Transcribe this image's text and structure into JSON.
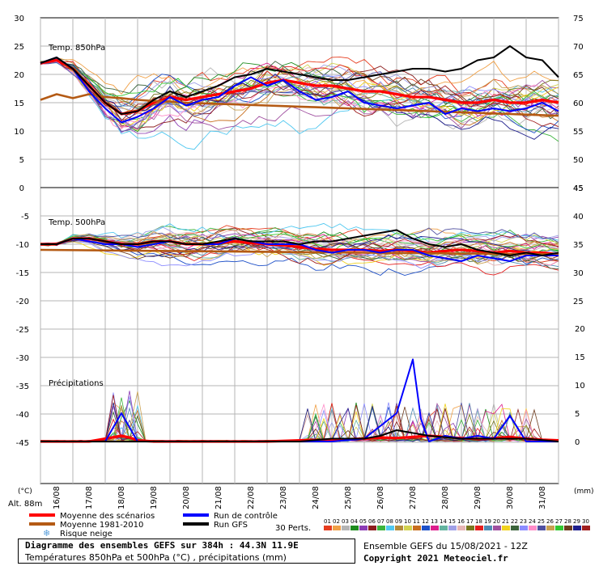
{
  "header": {
    "title": "Diagramme des ensembles GEFS sur 384h : 44.3N 11.9E",
    "subtitle": "Températures 850hPa et 500hPa (°C) , précipitations (mm)",
    "run_info": "Ensemble GEFS du 15/08/2021 - 12Z",
    "copyright": "Copyright 2021 Meteociel.fr"
  },
  "labels": {
    "panel_t850": "Temp. 850hPa",
    "panel_t500": "Temp. 500hPa",
    "panel_precip": "Précipitations",
    "unit_left": "(°C)",
    "unit_right": "(mm)",
    "altitude": "Alt. 88m",
    "perts": "30 Perts."
  },
  "legend": [
    {
      "label": "Moyenne des scénarios",
      "color": "#ff0000"
    },
    {
      "label": "Moyenne 1981-2010",
      "color": "#b45a14"
    },
    {
      "label": "Run de contrôle",
      "color": "#0000ff"
    },
    {
      "label": "Run GFS",
      "color": "#000000"
    },
    {
      "label": "Risque neige",
      "color": "#5aa0dc",
      "icon": "snowflake-icon"
    }
  ],
  "members": {
    "labels": [
      "01",
      "02",
      "03",
      "04",
      "05",
      "06",
      "07",
      "08",
      "09",
      "10",
      "11",
      "12",
      "13",
      "14",
      "15",
      "16",
      "17",
      "18",
      "19",
      "20",
      "21",
      "22",
      "23",
      "24",
      "25",
      "26",
      "27",
      "28",
      "29",
      "30"
    ],
    "colors": [
      "#e63c1e",
      "#f0a046",
      "#b4b4b4",
      "#1e8c1e",
      "#8c3cb4",
      "#8c1e1e",
      "#3cb43c",
      "#50c8f0",
      "#b48c3c",
      "#d2d250",
      "#c86e1e",
      "#1e50c8",
      "#dc1e8c",
      "#64b4a0",
      "#a0a0e6",
      "#e6b4b4",
      "#78781e",
      "#e61e1e",
      "#508cb4",
      "#a050a0",
      "#f0d21e",
      "#3c643c",
      "#8c8cff",
      "#ff8cc8",
      "#5050a0",
      "#c8a050",
      "#32c832",
      "#6e3c1e",
      "#1e1e8c",
      "#a01e1e"
    ]
  },
  "chart_data": [
    {
      "type": "line",
      "title": "Temp. 850hPa",
      "ylabel": "(°C)",
      "ylim": [
        0,
        30
      ],
      "y_ticks": [
        0,
        5,
        10,
        15,
        20,
        25,
        30
      ],
      "y_ticks_right": [
        45,
        50,
        55,
        60,
        65,
        70,
        75
      ],
      "x_ticks": [
        "16/08",
        "17/08",
        "18/08",
        "19/08",
        "20/08",
        "21/08",
        "22/08",
        "23/08",
        "24/08",
        "25/08",
        "26/08",
        "27/08",
        "28/08",
        "29/08",
        "30/08",
        "31/08"
      ],
      "x_days": [
        0.5,
        1.5,
        2.5,
        3.5,
        4.5,
        5.5,
        6.5,
        7.5,
        8.5,
        9.5,
        10.5,
        11.5,
        12.5,
        13.5,
        14.5,
        15.5
      ],
      "series": [
        {
          "name": "Moyenne des scénarios",
          "x": [
            0,
            0.5,
            1,
            1.5,
            2,
            2.5,
            3,
            3.5,
            4,
            4.5,
            5,
            5.5,
            6,
            6.5,
            7,
            7.5,
            8,
            8.5,
            9,
            9.5,
            10,
            10.5,
            11,
            11.5,
            12,
            12.5,
            13,
            13.5,
            14,
            14.5,
            15,
            15.5,
            16
          ],
          "y": [
            22,
            22.5,
            21,
            18,
            15,
            13,
            13.5,
            15,
            16,
            15.5,
            16,
            16.5,
            17,
            17.5,
            18.5,
            19,
            18.5,
            18,
            18,
            17.5,
            17,
            17,
            16.5,
            16,
            16,
            15.5,
            15,
            15,
            15.5,
            15,
            15,
            15.5,
            15
          ]
        },
        {
          "name": "Moyenne 1981-2010",
          "x": [
            0,
            0.5,
            1,
            1.5,
            2,
            2.5,
            3,
            3.5,
            4,
            4.5,
            5,
            5.5,
            6,
            6.5,
            7,
            7.5,
            8,
            8.5,
            9,
            9.5,
            10,
            10.5,
            11,
            11.5,
            12,
            12.5,
            13,
            13.5,
            14,
            14.5,
            15,
            15.5,
            16
          ],
          "y": [
            15.5,
            16.5,
            15.8,
            16.5,
            16,
            15.8,
            15.5,
            15.3,
            15.2,
            15,
            14.9,
            14.8,
            14.7,
            14.6,
            14.5,
            14.4,
            14.3,
            14.2,
            14.1,
            14,
            13.9,
            13.8,
            13.7,
            13.6,
            13.5,
            13.4,
            13.3,
            13.2,
            13.1,
            13,
            12.9,
            12.8,
            12.7
          ]
        },
        {
          "name": "Run de contrôle",
          "x": [
            0,
            0.5,
            1,
            1.5,
            2,
            2.5,
            3,
            3.5,
            4,
            4.5,
            5,
            5.5,
            6,
            6.5,
            7,
            7.5,
            8,
            8.5,
            9,
            9.5,
            10,
            10.5,
            11,
            11.5,
            12,
            12.5,
            13,
            13.5,
            14,
            14.5,
            15,
            15.5,
            16
          ],
          "y": [
            22,
            23,
            21,
            17,
            14,
            11.5,
            12.5,
            14,
            16,
            14.5,
            15.5,
            16,
            18,
            19.5,
            18,
            19,
            17,
            15.5,
            16,
            17,
            15,
            14.5,
            14,
            14.5,
            15,
            13,
            14,
            13.5,
            14,
            13.5,
            14,
            15,
            13.5
          ]
        },
        {
          "name": "Run GFS",
          "x": [
            0,
            0.5,
            1,
            1.5,
            2,
            2.5,
            3,
            3.5,
            4,
            4.5,
            5,
            5.5,
            6,
            6.5,
            7,
            7.5,
            8,
            8.5,
            9,
            9.5,
            10,
            10.5,
            11,
            11.5,
            12,
            12.5,
            13,
            13.5,
            14,
            14.5,
            15,
            15.5,
            16
          ],
          "y": [
            22,
            23,
            21,
            18,
            15,
            13,
            13.5,
            15.5,
            17,
            16,
            17,
            18,
            19.5,
            20,
            21,
            20.5,
            20,
            19.5,
            19,
            19,
            19.5,
            20,
            20.5,
            21,
            21,
            20.5,
            21,
            22.5,
            23,
            25,
            23,
            22.5,
            19.5
          ]
        }
      ]
    },
    {
      "type": "line",
      "title": "Temp. 500hPa",
      "ylabel": "(°C)",
      "ylim": [
        -22.5,
        0
      ],
      "y_ticks": [
        0,
        -5,
        -10,
        -15,
        -20
      ],
      "y_ticks_right": [
        45,
        40,
        35,
        30,
        25
      ],
      "x_ticks": [
        "16/08",
        "17/08",
        "18/08",
        "19/08",
        "20/08",
        "21/08",
        "22/08",
        "23/08",
        "24/08",
        "25/08",
        "26/08",
        "27/08",
        "28/08",
        "29/08",
        "30/08",
        "31/08"
      ],
      "x_days": [
        0.5,
        1.5,
        2.5,
        3.5,
        4.5,
        5.5,
        6.5,
        7.5,
        8.5,
        9.5,
        10.5,
        11.5,
        12.5,
        13.5,
        14.5,
        15.5
      ],
      "series": [
        {
          "name": "Moyenne des scénarios",
          "x": [
            0,
            0.5,
            1,
            1.5,
            2,
            2.5,
            3,
            3.5,
            4,
            4.5,
            5,
            5.5,
            6,
            6.5,
            7,
            7.5,
            8,
            8.5,
            9,
            9.5,
            10,
            10.5,
            11,
            11.5,
            12,
            12.5,
            13,
            13.5,
            14,
            14.5,
            15,
            15.5,
            16
          ],
          "y": [
            -10,
            -10,
            -9,
            -9,
            -9.5,
            -10,
            -10,
            -9.5,
            -9.5,
            -10,
            -10,
            -9.8,
            -9.5,
            -9.8,
            -10,
            -10.2,
            -10.5,
            -10.8,
            -11,
            -11,
            -11,
            -11.2,
            -11,
            -11.2,
            -11.5,
            -11.2,
            -11,
            -11.2,
            -11.5,
            -11.2,
            -11.5,
            -11.5,
            -11.8
          ]
        },
        {
          "name": "Moyenne 1981-2010",
          "x": [
            0,
            2,
            4,
            6,
            8,
            10,
            12,
            14,
            16
          ],
          "y": [
            -11,
            -11.1,
            -11.2,
            -11.3,
            -11.4,
            -11.5,
            -11.6,
            -11.7,
            -11.8
          ]
        },
        {
          "name": "Run de contrôle",
          "x": [
            0,
            0.5,
            1,
            1.5,
            2,
            2.5,
            3,
            3.5,
            4,
            4.5,
            5,
            5.5,
            6,
            6.5,
            7,
            7.5,
            8,
            8.5,
            9,
            9.5,
            10,
            10.5,
            11,
            11.5,
            12,
            12.5,
            13,
            13.5,
            14,
            14.5,
            15,
            15.5,
            16
          ],
          "y": [
            -10,
            -10,
            -9,
            -9.5,
            -10,
            -10,
            -10.5,
            -10,
            -9.5,
            -10,
            -10,
            -10,
            -9,
            -9.5,
            -10,
            -10,
            -10,
            -11,
            -11.5,
            -11,
            -11,
            -11.5,
            -11,
            -11,
            -12,
            -12.5,
            -13,
            -12,
            -12.5,
            -13,
            -12,
            -12,
            -12
          ]
        },
        {
          "name": "Run GFS",
          "x": [
            0,
            0.5,
            1,
            1.5,
            2,
            2.5,
            3,
            3.5,
            4,
            4.5,
            5,
            5.5,
            6,
            6.5,
            7,
            7.5,
            8,
            8.5,
            9,
            9.5,
            10,
            10.5,
            11,
            11.5,
            12,
            12.5,
            13,
            13.5,
            14,
            14.5,
            15,
            15.5,
            16
          ],
          "y": [
            -10,
            -10,
            -9,
            -9,
            -9.5,
            -10,
            -10,
            -9.5,
            -9.5,
            -10,
            -10,
            -9.5,
            -9,
            -9.5,
            -9.5,
            -9.5,
            -10,
            -9.5,
            -9.5,
            -9,
            -8.5,
            -8,
            -7.5,
            -9,
            -10,
            -10.5,
            -10,
            -11,
            -11.5,
            -12,
            -11.5,
            -12,
            -11.5
          ]
        }
      ]
    },
    {
      "type": "line",
      "title": "Précipitations",
      "ylabel": "(mm)",
      "ylim": [
        0,
        24
      ],
      "y_ticks_right": [
        0,
        5,
        10,
        15,
        20
      ],
      "y_ticks_left_ref": [
        -45,
        -40,
        -35,
        -30,
        -25,
        -20
      ],
      "x_ticks": [
        "16/08",
        "17/08",
        "18/08",
        "19/08",
        "20/08",
        "21/08",
        "22/08",
        "23/08",
        "24/08",
        "25/08",
        "26/08",
        "27/08",
        "28/08",
        "29/08",
        "30/08",
        "31/08"
      ],
      "x_days": [
        0.5,
        1.5,
        2.5,
        3.5,
        4.5,
        5.5,
        6.5,
        7.5,
        8.5,
        9.5,
        10.5,
        11.5,
        12.5,
        13.5,
        14.5,
        15.5
      ],
      "series": [
        {
          "name": "Moyenne des scénarios",
          "x": [
            0,
            1,
            1.5,
            2,
            2.5,
            2.75,
            3,
            3.5,
            4,
            5,
            6,
            7,
            8,
            9,
            10,
            10.5,
            11,
            11.5,
            12,
            12.5,
            13,
            13.5,
            14,
            14.5,
            15,
            15.5,
            16
          ],
          "y": [
            0,
            0,
            0,
            0.5,
            1,
            0.7,
            0.2,
            0,
            0,
            0,
            0,
            0,
            0.2,
            0.3,
            0.5,
            0.7,
            0.6,
            0.8,
            1,
            0.8,
            0.6,
            0.4,
            0.6,
            0.8,
            0.5,
            0.3,
            0.2
          ]
        },
        {
          "name": "Run de contrôle",
          "x": [
            0,
            1,
            2,
            2.5,
            3,
            3.5,
            4,
            5,
            6,
            7,
            8,
            9,
            10,
            11,
            11.5,
            11.75,
            12,
            12.5,
            13,
            13.5,
            14,
            14.5,
            15,
            15.5,
            16
          ],
          "y": [
            0,
            0,
            0,
            5,
            0,
            0,
            0,
            0,
            0,
            0,
            0,
            0,
            0.5,
            5,
            14.5,
            4,
            0,
            1,
            0.5,
            1,
            0.5,
            4.5,
            0,
            0,
            0
          ]
        },
        {
          "name": "Run GFS",
          "x": [
            0,
            2,
            4,
            6,
            8,
            9,
            10,
            10.5,
            11,
            12,
            13,
            14,
            15,
            16
          ],
          "y": [
            0,
            0,
            0,
            0,
            0,
            0.5,
            0.5,
            1,
            2,
            1,
            0.5,
            0.5,
            0.5,
            0
          ]
        }
      ]
    }
  ]
}
